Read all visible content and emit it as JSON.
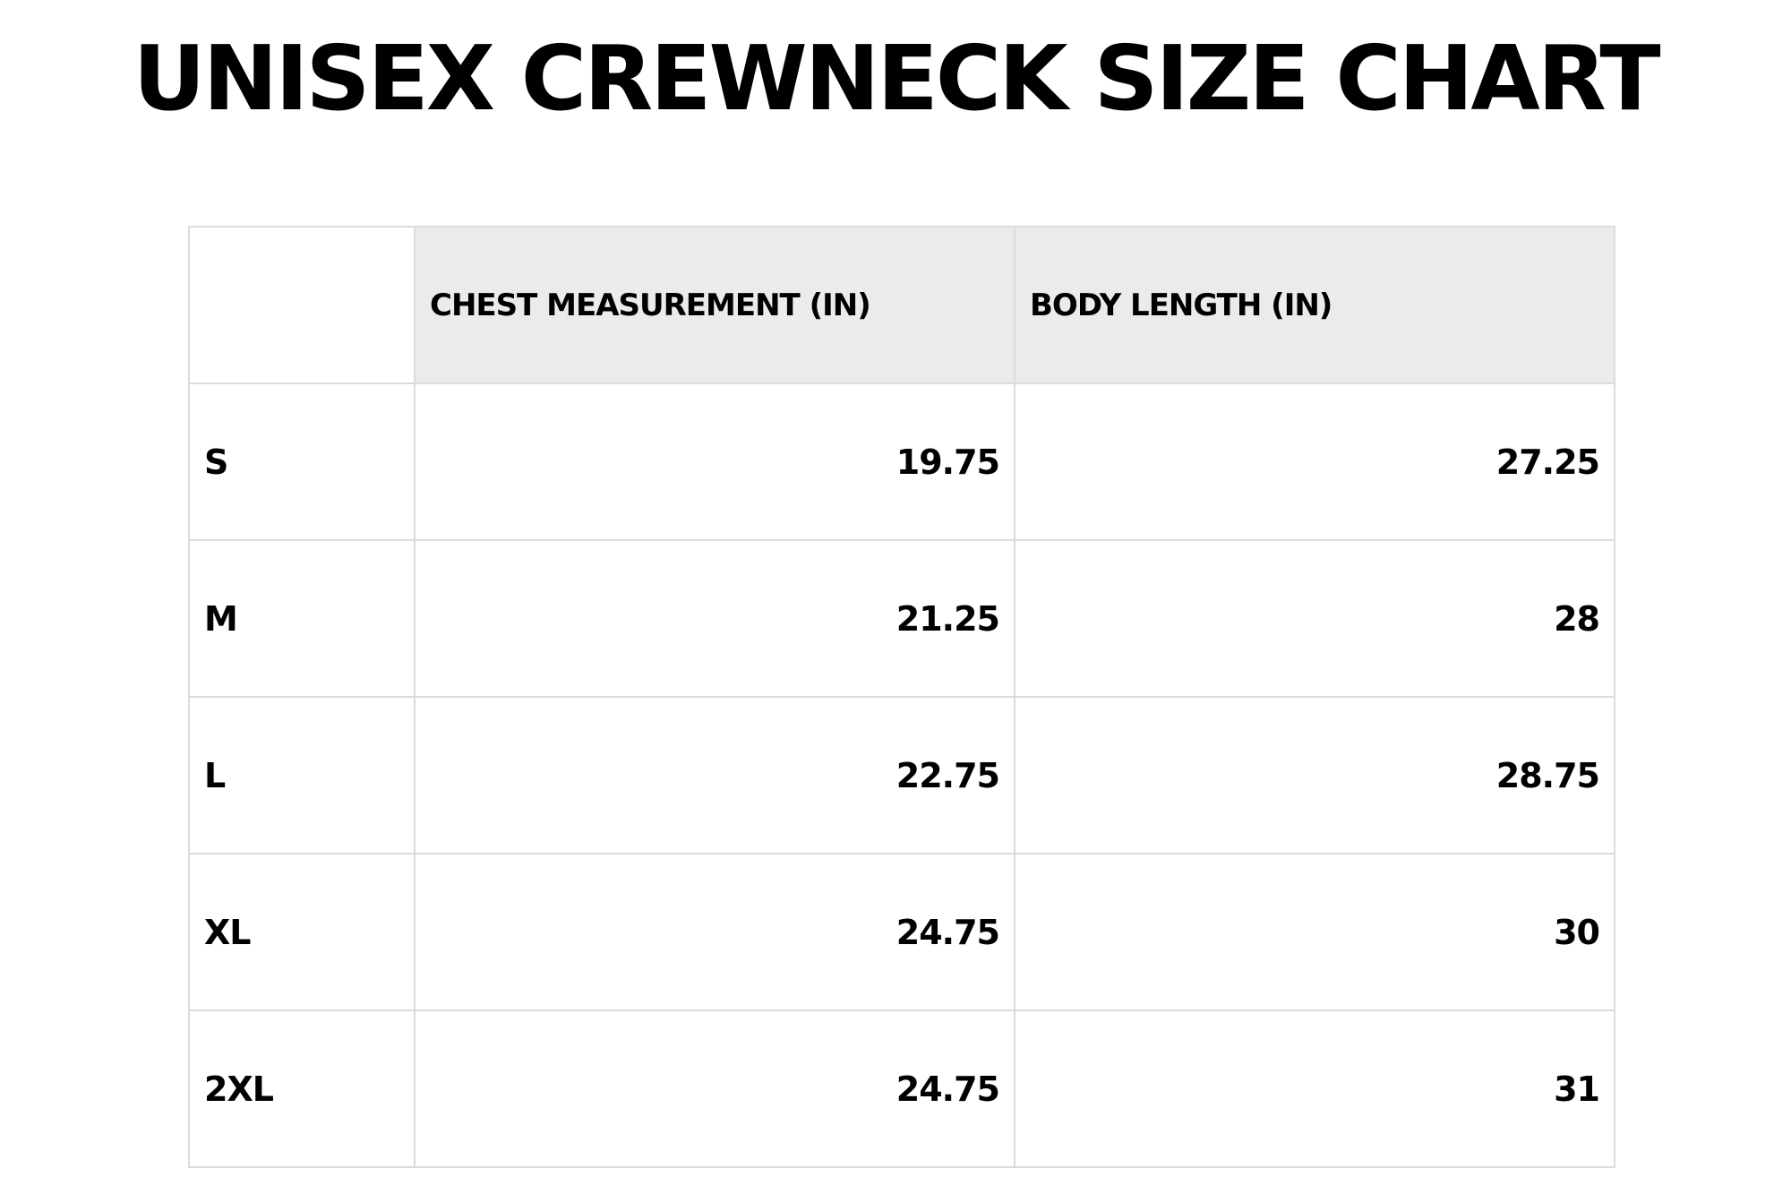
{
  "title": "UNISEX CREWNECK SIZE CHART",
  "table": {
    "headers": [
      "",
      "CHEST MEASUREMENT (IN)",
      "BODY LENGTH (IN)"
    ],
    "rows": [
      {
        "size": "S",
        "chest": "19.75",
        "length": "27.25"
      },
      {
        "size": "M",
        "chest": "21.25",
        "length": "28"
      },
      {
        "size": "L",
        "chest": "22.75",
        "length": "28.75"
      },
      {
        "size": "XL",
        "chest": "24.75",
        "length": "30"
      },
      {
        "size": "2XL",
        "chest": "24.75",
        "length": "31"
      }
    ]
  },
  "colors": {
    "header_background": "#ebebeb",
    "border": "#dcdcdc",
    "text": "#000000"
  }
}
